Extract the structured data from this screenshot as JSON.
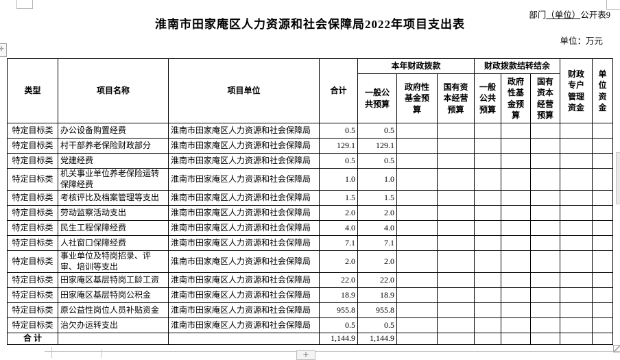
{
  "header": {
    "doc_label_prefix": "部门",
    "doc_label_underlined": "（单位）",
    "doc_label_suffix": "公开表9",
    "title": "淮南市田家庵区人力资源和社会保障局2022年项目支出表",
    "unit_note": "单位：万元"
  },
  "controls": {
    "add_button_label": "+",
    "move_handle_glyph": "✛"
  },
  "table": {
    "columns": {
      "type": "类型",
      "project_name": "项目名称",
      "project_unit": "项目单位",
      "total": "合计",
      "current_year_group": "本年财政拨款",
      "carryover_group": "财政拨款结转结余",
      "cy_general": "一般公\n共预算",
      "cy_gov_fund": "政府性\n基金预\n算",
      "cy_state_capital": "国有资\n本经营\n预算",
      "co_general": "一般\n公共\n预算",
      "co_gov_fund": "政府\n性基\n金预\n算",
      "co_state_capital": "国有\n资本\n经营\n预算",
      "special_account": "财政\n专户\n管理\n资金",
      "unit_funds": "单\n位\n资\n金"
    },
    "rows": [
      {
        "type": "特定目标类",
        "name": "办公设备购置经费",
        "unit": "淮南市田家庵区人力资源和社会保障局",
        "total": "0.5",
        "general": "0.5"
      },
      {
        "type": "特定目标类",
        "name": "村干部养老保险财政部分",
        "unit": "淮南市田家庵区人力资源和社会保障局",
        "total": "129.1",
        "general": "129.1"
      },
      {
        "type": "特定目标类",
        "name": "党建经费",
        "unit": "淮南市田家庵区人力资源和社会保障局",
        "total": "0.5",
        "general": "0.5"
      },
      {
        "type": "特定目标类",
        "name": "机关事业单位养老保险运转保障经费",
        "unit": "淮南市田家庵区人力资源和社会保障局",
        "total": "1.0",
        "general": "1.0"
      },
      {
        "type": "特定目标类",
        "name": "考核评比及档案管理等支出",
        "unit": "淮南市田家庵区人力资源和社会保障局",
        "total": "1.5",
        "general": "1.5"
      },
      {
        "type": "特定目标类",
        "name": "劳动监察活动支出",
        "unit": "淮南市田家庵区人力资源和社会保障局",
        "total": "2.0",
        "general": "2.0"
      },
      {
        "type": "特定目标类",
        "name": "民生工程保障经费",
        "unit": "淮南市田家庵区人力资源和社会保障局",
        "total": "4.0",
        "general": "4.0"
      },
      {
        "type": "特定目标类",
        "name": "人社窗口保障经费",
        "unit": "淮南市田家庵区人力资源和社会保障局",
        "total": "7.1",
        "general": "7.1"
      },
      {
        "type": "特定目标类",
        "name": "事业单位及特岗招录、评审、培训等支出",
        "unit": "淮南市田家庵区人力资源和社会保障局",
        "total": "2.0",
        "general": "2.0"
      },
      {
        "type": "特定目标类",
        "name": "田家庵区基层特岗工龄工资",
        "unit": "淮南市田家庵区人力资源和社会保障局",
        "total": "22.0",
        "general": "22.0"
      },
      {
        "type": "特定目标类",
        "name": "田家庵区基层特岗公积金",
        "unit": "淮南市田家庵区人力资源和社会保障局",
        "total": "18.9",
        "general": "18.9"
      },
      {
        "type": "特定目标类",
        "name": "原公益性岗位人员补贴资金",
        "unit": "淮南市田家庵区人力资源和社会保障局",
        "total": "955.8",
        "general": "955.8"
      },
      {
        "type": "特定目标类",
        "name": "治欠办运转支出",
        "unit": "淮南市田家庵区人力资源和社会保障局",
        "total": "0.5",
        "general": "0.5"
      }
    ],
    "total_row": {
      "label": "合 计",
      "total": "1,144.9",
      "general": "1,144.9"
    }
  }
}
